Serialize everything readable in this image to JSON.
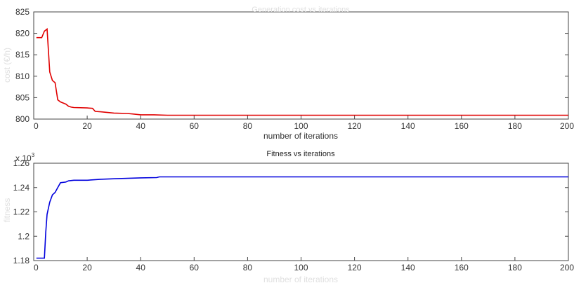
{
  "chart_data": [
    {
      "type": "line",
      "title": "Generation cost vs iterations",
      "xlabel": "number of iterations",
      "ylabel": "cost (€/h)",
      "xlim": [
        0,
        200
      ],
      "ylim": [
        800,
        825
      ],
      "xticks": [
        "0",
        "20",
        "40",
        "60",
        "80",
        "100",
        "120",
        "140",
        "160",
        "180",
        "200"
      ],
      "yticks": [
        "800",
        "805",
        "810",
        "815",
        "820",
        "825"
      ],
      "grid": false,
      "color": "#e00000",
      "series": [
        {
          "x": [
            1,
            3,
            4,
            5,
            5.5,
            6,
            7,
            8,
            9,
            10,
            12,
            13,
            14,
            15,
            20,
            22,
            23,
            25,
            30,
            35,
            37,
            40,
            45,
            50,
            60,
            80,
            100,
            140,
            200
          ],
          "y": [
            819,
            819,
            820.5,
            821,
            816,
            811,
            809,
            808.5,
            804.5,
            804,
            803.5,
            803,
            802.8,
            802.7,
            802.6,
            802.5,
            801.8,
            801.7,
            801.4,
            801.3,
            801.2,
            801,
            801,
            800.9,
            800.9,
            800.9,
            800.9,
            800.9,
            800.9
          ]
        }
      ]
    },
    {
      "type": "line",
      "title": "Fitness vs iterations",
      "xlabel": "number of iterations",
      "ylabel": "fitness",
      "y_multiplier": "x 10",
      "y_exponent": "3",
      "xlim": [
        0,
        200
      ],
      "ylim": [
        1.18,
        1.26
      ],
      "xticks": [
        "0",
        "20",
        "40",
        "60",
        "80",
        "100",
        "120",
        "140",
        "160",
        "180",
        "200"
      ],
      "yticks": [
        "1.18",
        "1.2",
        "1.22",
        "1.24",
        "1.26"
      ],
      "grid": false,
      "color": "#0000dd",
      "series": [
        {
          "x": [
            1,
            4,
            4.5,
            5,
            6,
            7,
            8,
            9,
            10,
            12,
            13,
            15,
            20,
            25,
            30,
            40,
            46,
            47,
            60,
            100,
            200
          ],
          "y": [
            1.182,
            1.182,
            1.203,
            1.218,
            1.228,
            1.234,
            1.236,
            1.24,
            1.244,
            1.2445,
            1.2455,
            1.246,
            1.246,
            1.2468,
            1.2472,
            1.248,
            1.2482,
            1.2488,
            1.2488,
            1.2488,
            1.2488
          ]
        }
      ]
    }
  ]
}
